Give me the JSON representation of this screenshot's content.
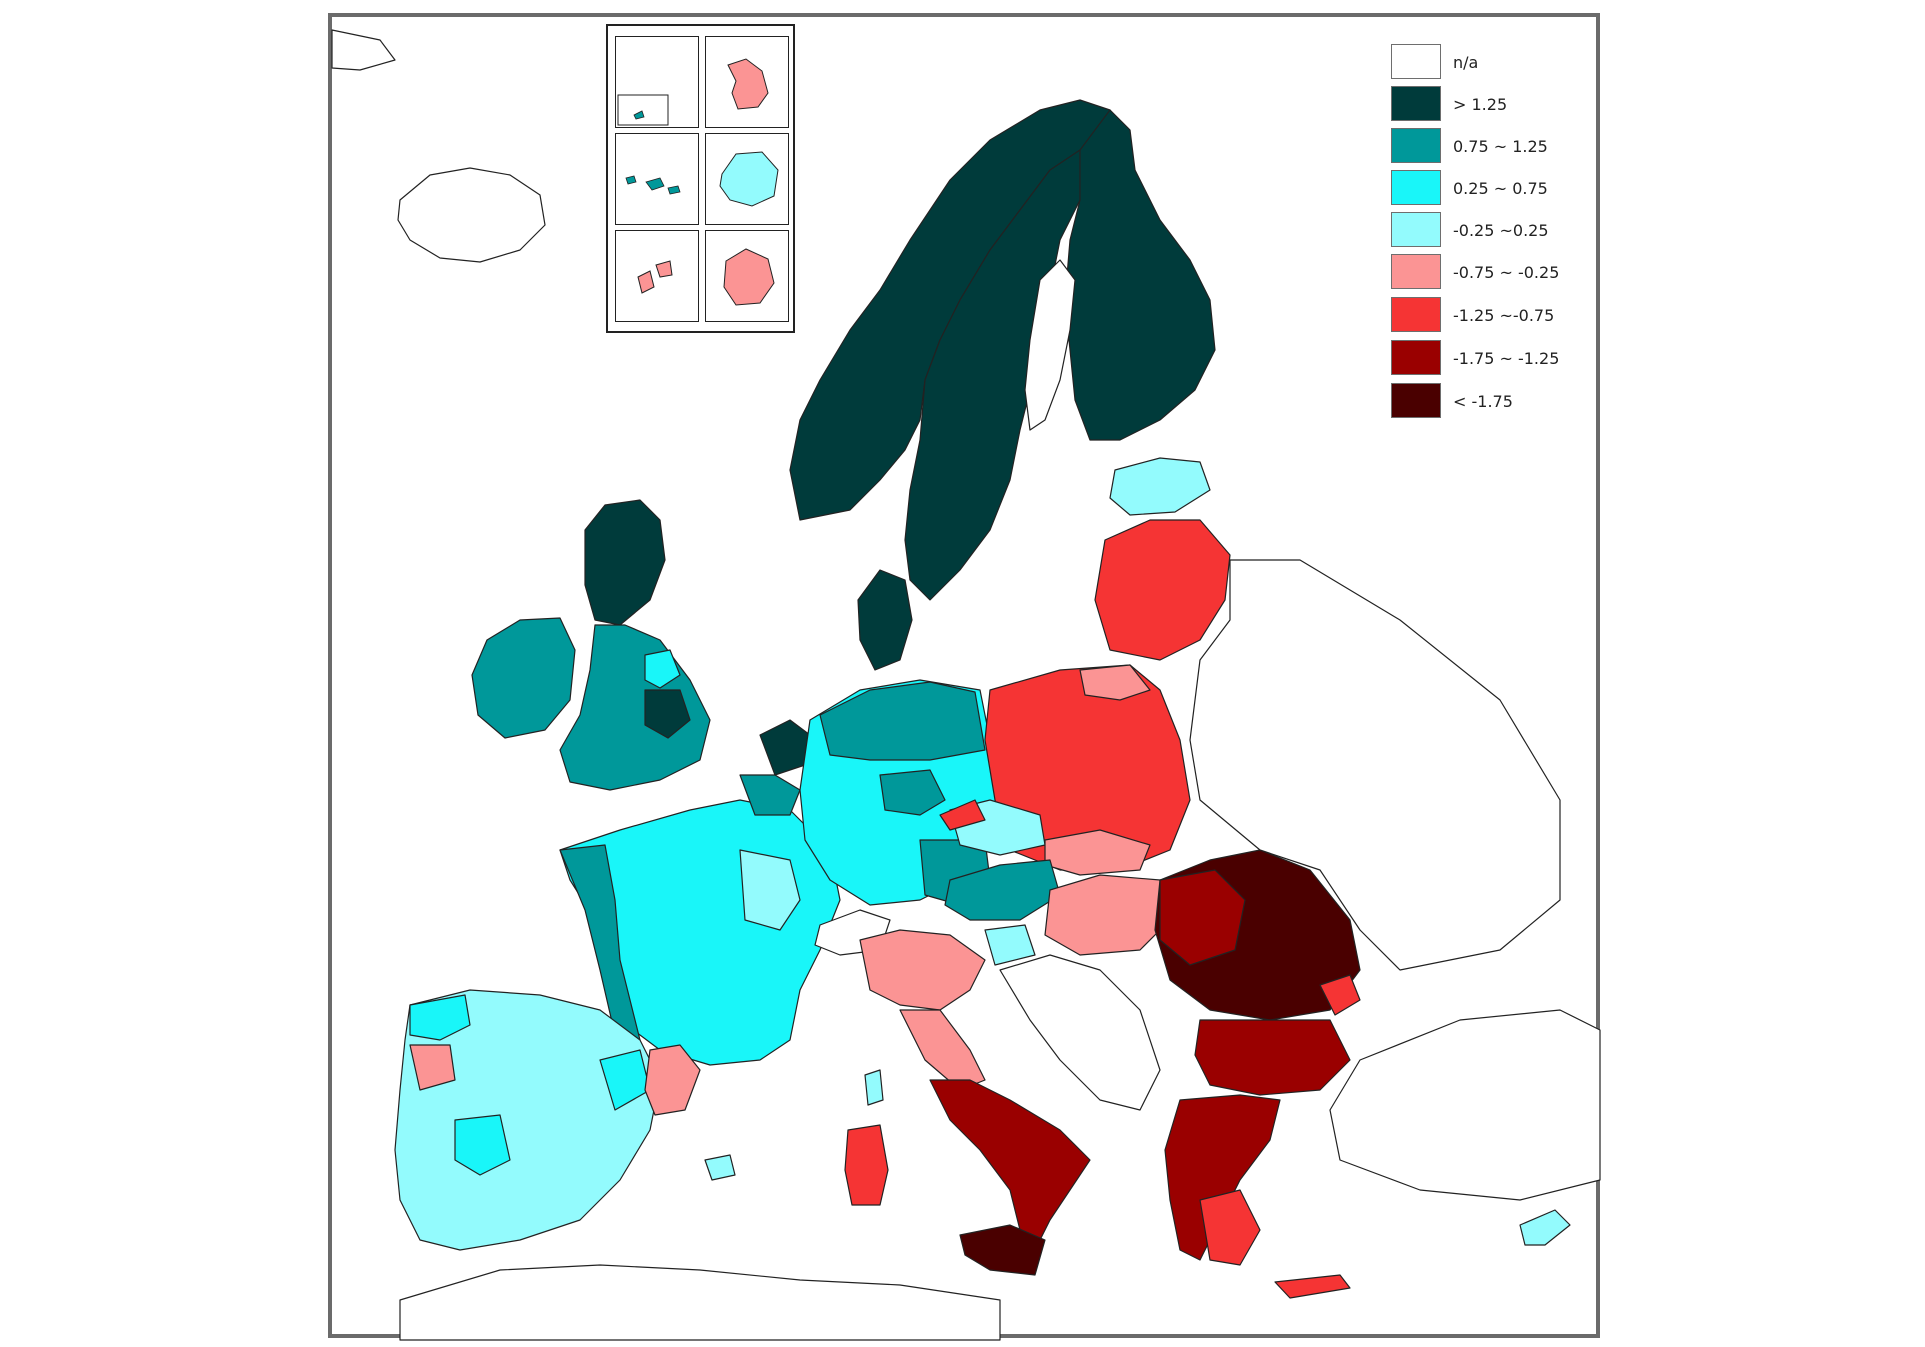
{
  "map": {
    "colors": {
      "na": "#ffffff",
      "gt_1_25": "#003b3b",
      "c_0_75_1_25": "#00989a",
      "c_0_25_0_75": "#19f6f9",
      "c_m0_25_0_25": "#93fbfd",
      "c_m0_75_m0_25": "#fb9494",
      "c_m1_25_m0_75": "#f53434",
      "c_m1_75_m1_25": "#9a0000",
      "lt_m1_75": "#4a0000",
      "border": "#222222"
    },
    "legend": [
      {
        "label": "n/a",
        "color": "#ffffff",
        "icon": "legend-swatch"
      },
      {
        "label": "> 1.25",
        "color": "#003b3b",
        "icon": "legend-swatch"
      },
      {
        "label": "0.75 ~ 1.25",
        "color": "#00989a",
        "icon": "legend-swatch"
      },
      {
        "label": "0.25 ~ 0.75",
        "color": "#19f6f9",
        "icon": "legend-swatch"
      },
      {
        "label": "-0.25 ~0.25",
        "color": "#93fbfd",
        "icon": "legend-swatch"
      },
      {
        "label": "-0.75 ~ -0.25",
        "color": "#fb9494",
        "icon": "legend-swatch"
      },
      {
        "label": "-1.25 ~-0.75",
        "color": "#f53434",
        "icon": "legend-swatch"
      },
      {
        "label": "-1.75 ~ -1.25",
        "color": "#9a0000",
        "icon": "legend-swatch"
      },
      {
        "label": "< -1.75",
        "color": "#4a0000",
        "icon": "legend-swatch"
      }
    ]
  }
}
